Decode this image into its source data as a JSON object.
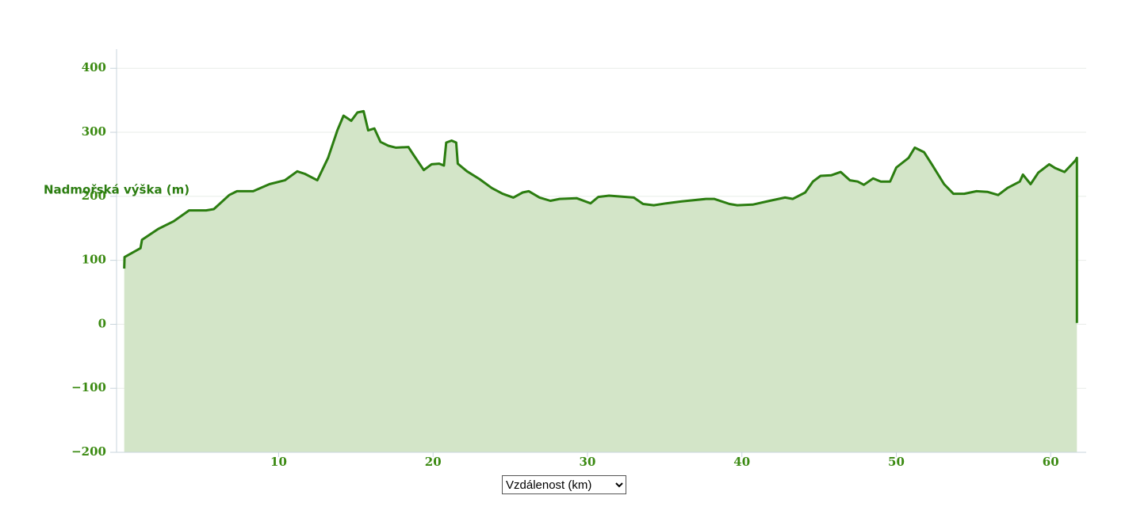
{
  "chart_data": {
    "type": "area",
    "y_label": "Nadmořská výška (m)",
    "x_label": "Vzdálenost (km)",
    "color": "#2b7d10",
    "fill": "#d3e5c8",
    "grid": true,
    "xlim": [
      -0.5,
      62.3
    ],
    "ylim": [
      -200,
      430
    ],
    "xticks": [
      10,
      20,
      30,
      40,
      50,
      60
    ],
    "yticks": [
      {
        "value": -200,
        "label": "−200"
      },
      {
        "value": -100,
        "label": "−100"
      },
      0,
      100,
      200,
      300,
      400
    ],
    "x": [
      0,
      0.02,
      1.05,
      1.15,
      2.2,
      3.2,
      4.2,
      5.3,
      5.8,
      6.8,
      7.3,
      8.35,
      9.4,
      10.4,
      11.2,
      11.7,
      12.5,
      13.2,
      13.8,
      14.2,
      14.7,
      15.1,
      15.5,
      15.8,
      16.2,
      16.6,
      17.1,
      17.6,
      18.4,
      18.7,
      19.4,
      19.9,
      20.4,
      20.7,
      20.85,
      21.2,
      21.5,
      21.6,
      22.2,
      23.0,
      23.8,
      24.5,
      25.2,
      25.8,
      26.2,
      26.9,
      27.6,
      28.2,
      29.3,
      30.2,
      30.7,
      31.4,
      33.0,
      33.6,
      34.3,
      35.1,
      36.1,
      37.7,
      38.2,
      39.2,
      39.7,
      40.7,
      41.8,
      42.8,
      43.3,
      44.1,
      44.6,
      45.1,
      45.8,
      46.4,
      47.0,
      47.5,
      47.9,
      48.5,
      49.0,
      49.6,
      50.0,
      50.8,
      51.2,
      51.8,
      52.3,
      53.1,
      53.7,
      54.4,
      55.2,
      55.9,
      56.6,
      57.2,
      58.0,
      58.2,
      58.7,
      59.2,
      59.9,
      60.3,
      60.9,
      61.6,
      61.7,
      61.7
    ],
    "values": [
      87,
      105,
      119,
      132,
      149,
      161,
      178,
      178,
      180,
      202,
      208,
      208,
      219,
      225,
      239,
      235,
      225,
      260,
      303,
      326,
      318,
      331,
      333,
      303,
      306,
      285,
      279,
      276,
      277,
      266,
      241,
      250,
      251,
      248,
      284,
      287,
      284,
      251,
      239,
      227,
      213,
      204,
      198,
      206,
      208,
      198,
      193,
      196,
      197,
      189,
      199,
      201,
      198,
      188,
      186,
      189,
      192,
      196,
      196,
      188,
      186,
      187,
      193,
      198,
      196,
      206,
      223,
      232,
      233,
      238,
      225,
      223,
      218,
      228,
      223,
      223,
      245,
      260,
      276,
      269,
      250,
      219,
      204,
      204,
      208,
      207,
      202,
      213,
      223,
      234,
      219,
      237,
      250,
      244,
      238,
      256,
      260,
      2
    ]
  }
}
